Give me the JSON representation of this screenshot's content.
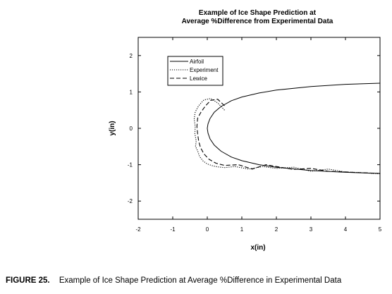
{
  "chart_data": {
    "type": "line",
    "title": "Example of Ice Shape Prediction at\nAverage %Difference from Experimental Data",
    "xlabel": "x(in)",
    "ylabel": "y(in)",
    "xlim": [
      -2,
      5
    ],
    "ylim": [
      -2.5,
      2.5
    ],
    "x_ticks": [
      -2,
      -1,
      0,
      1,
      2,
      3,
      4,
      5
    ],
    "y_ticks": [
      -2,
      -1,
      0,
      1,
      2
    ],
    "grid": false,
    "legend_position": "top-left",
    "series": [
      {
        "name": "Airfoil",
        "style": "solid",
        "x": [
          5.0,
          4.0,
          3.0,
          2.0,
          1.5,
          1.0,
          0.7,
          0.4,
          0.2,
          0.08,
          0.02,
          0.0,
          0.02,
          0.08,
          0.2,
          0.4,
          0.7,
          1.0,
          1.5,
          2.0,
          3.0,
          4.0,
          5.0
        ],
        "y": [
          1.24,
          1.21,
          1.15,
          1.05,
          0.97,
          0.86,
          0.76,
          0.6,
          0.44,
          0.27,
          0.12,
          0.0,
          -0.13,
          -0.29,
          -0.46,
          -0.63,
          -0.79,
          -0.89,
          -1.0,
          -1.07,
          -1.16,
          -1.21,
          -1.24
        ]
      },
      {
        "name": "Experiment",
        "style": "dotted",
        "x": [
          0.5,
          0.3,
          0.1,
          -0.1,
          -0.25,
          -0.35,
          -0.38,
          -0.35,
          -0.36,
          -0.32,
          -0.34,
          -0.28,
          -0.22,
          -0.12,
          0.0,
          0.15,
          0.3,
          0.5,
          0.8,
          1.2,
          1.6,
          2.0,
          2.5,
          3.0,
          3.5,
          4.0,
          4.5,
          5.0
        ],
        "y": [
          0.5,
          0.7,
          0.82,
          0.78,
          0.62,
          0.45,
          0.25,
          0.05,
          -0.15,
          -0.35,
          -0.5,
          -0.62,
          -0.78,
          -0.9,
          -0.98,
          -1.03,
          -1.06,
          -1.08,
          -1.05,
          -1.12,
          -1.05,
          -1.1,
          -1.07,
          -1.18,
          -1.12,
          -1.2,
          -1.22,
          -1.25
        ]
      },
      {
        "name": "Lewice",
        "style": "dashed",
        "x": [
          0.5,
          0.3,
          0.1,
          -0.05,
          -0.18,
          -0.28,
          -0.3,
          -0.28,
          -0.25,
          -0.2,
          -0.1,
          0.05,
          0.25,
          0.5,
          0.9,
          1.3,
          1.7,
          2.0,
          2.5,
          3.0,
          3.5,
          4.0,
          4.5,
          5.0
        ],
        "y": [
          0.62,
          0.8,
          0.77,
          0.62,
          0.45,
          0.28,
          0.05,
          -0.15,
          -0.35,
          -0.52,
          -0.7,
          -0.85,
          -0.96,
          -1.02,
          -1.0,
          -1.12,
          -1.0,
          -1.05,
          -1.13,
          -1.1,
          -1.18,
          -1.2,
          -1.22,
          -1.24
        ]
      }
    ]
  },
  "caption": {
    "number": "FIGURE 25.",
    "text": "Example of Ice Shape Prediction at Average %Difference in Experimental Data"
  },
  "colors": {
    "line": "#000000",
    "background": "#ffffff"
  }
}
